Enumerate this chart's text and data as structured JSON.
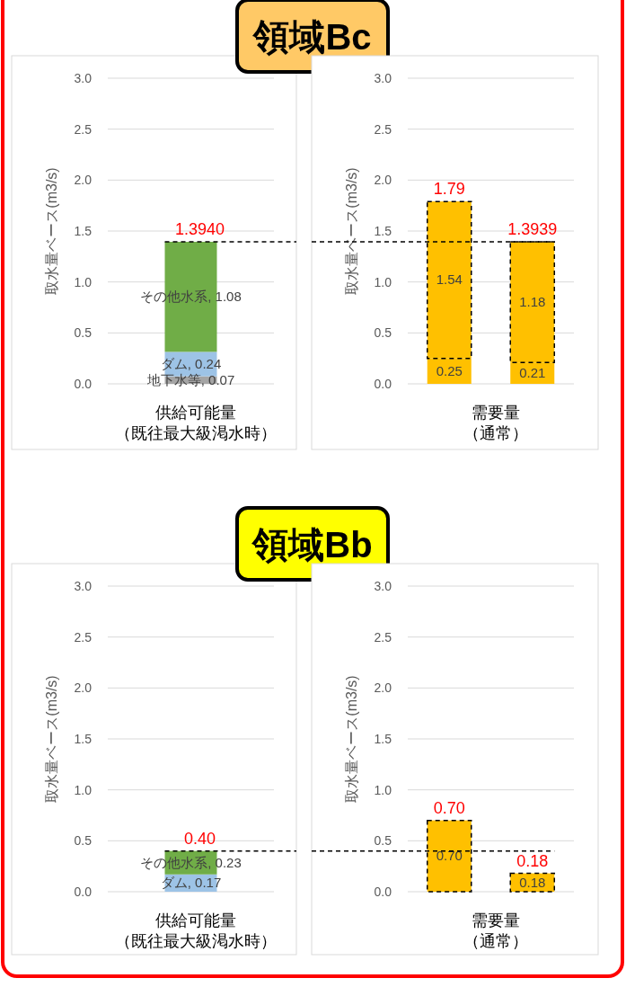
{
  "chart_data": [
    {
      "type": "bar",
      "title": "領域Bc",
      "stacked": true,
      "categories": [
        null
      ],
      "xlabel": "供給可能量（既往最大級渇水時）",
      "ylabel": "取水量ベース(m3/s)",
      "ylim": [
        0,
        3
      ],
      "yticks": [
        {
          "value": 0,
          "label": "0.0"
        },
        {
          "value": 0.5,
          "label": "0.5"
        },
        {
          "value": 1,
          "label": "1.0"
        },
        {
          "value": 1.5,
          "label": "1.5"
        },
        {
          "value": 2,
          "label": "2.0"
        },
        {
          "value": 2.5,
          "label": "2.5"
        },
        {
          "value": 3,
          "label": "3.0"
        }
      ],
      "grid": "y",
      "totals": [
        "1.3940"
      ],
      "series": [
        {
          "name": "地下水等",
          "color": "#a5a5a5",
          "values": [
            0.074
          ],
          "value_labels": [
            ", 0.07"
          ]
        },
        {
          "name": "ダム",
          "color": "#9dc3e6",
          "values": [
            0.24
          ],
          "value_labels": [
            ", 0.24"
          ]
        },
        {
          "name": "その他水系",
          "color": "#70ad47",
          "values": [
            1.08
          ],
          "value_labels": [
            ", 1.08"
          ]
        }
      ],
      "ref_lines": [
        {
          "axis": "y",
          "value": 1.394,
          "line_style": "dashed",
          "color": "#000000"
        }
      ]
    },
    {
      "type": "bar",
      "stacked": true,
      "categories": [
        null,
        null
      ],
      "xlabel": "需要量（通常）",
      "ylabel": "取水量ベース(m3/s)",
      "ylim": [
        0,
        3
      ],
      "yticks": [
        {
          "value": 0,
          "label": "0.0"
        },
        {
          "value": 0.5,
          "label": "0.5"
        },
        {
          "value": 1,
          "label": "1.0"
        },
        {
          "value": 1.5,
          "label": "1.5"
        },
        {
          "value": 2,
          "label": "2.0"
        },
        {
          "value": 2.5,
          "label": "2.5"
        },
        {
          "value": 3,
          "label": "3.0"
        }
      ],
      "grid": "y",
      "totals": [
        "1.79",
        "1.3939"
      ],
      "series": [
        {
          "color": "#ffc000",
          "values": [
            0.25,
            0.21
          ],
          "value_labels": [
            "0.25",
            "0.21"
          ]
        },
        {
          "color": "#ffc000",
          "values": [
            1.54,
            1.1839
          ],
          "value_labels": [
            "1.54",
            "1.18"
          ],
          "line_style": "dashed"
        }
      ],
      "ref_lines": [
        {
          "axis": "y",
          "value": 1.394,
          "line_style": "dashed",
          "color": "#000000"
        }
      ]
    },
    {
      "type": "bar",
      "title": "領域Bb",
      "stacked": true,
      "categories": [
        null
      ],
      "xlabel": "供給可能量（既往最大級渇水時）",
      "ylabel": "取水量ベース(m3/s)",
      "ylim": [
        0,
        3
      ],
      "yticks": [
        {
          "value": 0,
          "label": "0.0"
        },
        {
          "value": 0.5,
          "label": "0.5"
        },
        {
          "value": 1,
          "label": "1.0"
        },
        {
          "value": 1.5,
          "label": "1.5"
        },
        {
          "value": 2,
          "label": "2.0"
        },
        {
          "value": 2.5,
          "label": "2.5"
        },
        {
          "value": 3,
          "label": "3.0"
        }
      ],
      "grid": "y",
      "totals": [
        "0.40"
      ],
      "series": [
        {
          "name": "ダム",
          "color": "#9dc3e6",
          "values": [
            0.17
          ],
          "value_labels": [
            ", 0.17"
          ]
        },
        {
          "name": "その他水系",
          "color": "#70ad47",
          "values": [
            0.23
          ],
          "value_labels": [
            ", 0.23"
          ]
        }
      ],
      "ref_lines": [
        {
          "axis": "y",
          "value": 0.4,
          "line_style": "dashed",
          "color": "#000000"
        }
      ]
    },
    {
      "type": "bar",
      "stacked": true,
      "categories": [
        null,
        null
      ],
      "xlabel": "需要量（通常）",
      "ylabel": "取水量ベース(m3/s)",
      "ylim": [
        0,
        3
      ],
      "yticks": [
        {
          "value": 0,
          "label": "0.0"
        },
        {
          "value": 0.5,
          "label": "0.5"
        },
        {
          "value": 1,
          "label": "1.0"
        },
        {
          "value": 1.5,
          "label": "1.5"
        },
        {
          "value": 2,
          "label": "2.0"
        },
        {
          "value": 2.5,
          "label": "2.5"
        },
        {
          "value": 3,
          "label": "3.0"
        }
      ],
      "grid": "y",
      "totals": [
        "0.70",
        "0.18"
      ],
      "series": [
        {
          "color": "#ffc000",
          "values": [
            0.7,
            0.18
          ],
          "value_labels": [
            "0.70",
            "0.18"
          ],
          "line_style": "dashed"
        }
      ],
      "ref_lines": [
        {
          "axis": "y",
          "value": 0.4,
          "line_style": "dashed",
          "color": "#000000"
        }
      ]
    }
  ]
}
